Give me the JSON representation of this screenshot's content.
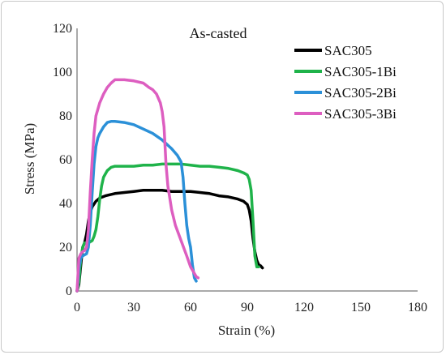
{
  "chart_data": {
    "type": "line",
    "title": "As-casted",
    "xlabel": "Strain (%)",
    "ylabel": "Stress (MPa)",
    "xlim": [
      0,
      180
    ],
    "ylim": [
      0,
      120
    ],
    "xticks": [
      0,
      30,
      60,
      90,
      120,
      150,
      180
    ],
    "yticks": [
      0,
      20,
      40,
      60,
      80,
      100,
      120
    ],
    "grid": false,
    "legend": "top-right",
    "series": [
      {
        "name": "SAC305",
        "color": "#000000",
        "points": [
          [
            0,
            0
          ],
          [
            1,
            3
          ],
          [
            2,
            12
          ],
          [
            3,
            20
          ],
          [
            4,
            22
          ],
          [
            5,
            26
          ],
          [
            6,
            32
          ],
          [
            7,
            36
          ],
          [
            8,
            38.5
          ],
          [
            10,
            41
          ],
          [
            12,
            42.5
          ],
          [
            15,
            43.5
          ],
          [
            20,
            44.5
          ],
          [
            25,
            45
          ],
          [
            30,
            45.5
          ],
          [
            35,
            46
          ],
          [
            40,
            46
          ],
          [
            45,
            46
          ],
          [
            50,
            45.5
          ],
          [
            55,
            45.5
          ],
          [
            60,
            45.5
          ],
          [
            65,
            45
          ],
          [
            70,
            44.5
          ],
          [
            75,
            43.5
          ],
          [
            80,
            43
          ],
          [
            85,
            42
          ],
          [
            88,
            41
          ],
          [
            90,
            39.5
          ],
          [
            91,
            37
          ],
          [
            92,
            32
          ],
          [
            93,
            24
          ],
          [
            94,
            18
          ],
          [
            95,
            14
          ],
          [
            96,
            12
          ],
          [
            97,
            11.5
          ],
          [
            98,
            10.5
          ]
        ]
      },
      {
        "name": "SAC305-1Bi",
        "color": "#1fb34a",
        "points": [
          [
            0,
            0
          ],
          [
            1,
            4
          ],
          [
            2,
            15
          ],
          [
            3,
            20
          ],
          [
            4,
            22
          ],
          [
            5,
            22
          ],
          [
            6,
            22
          ],
          [
            7,
            22.5
          ],
          [
            8,
            23
          ],
          [
            9,
            25
          ],
          [
            10,
            28
          ],
          [
            11,
            34
          ],
          [
            12,
            42
          ],
          [
            13,
            48
          ],
          [
            14,
            52
          ],
          [
            16,
            55
          ],
          [
            18,
            56.5
          ],
          [
            20,
            57
          ],
          [
            25,
            57
          ],
          [
            30,
            57
          ],
          [
            35,
            57.5
          ],
          [
            40,
            57.5
          ],
          [
            45,
            58
          ],
          [
            50,
            58
          ],
          [
            55,
            58
          ],
          [
            60,
            57.5
          ],
          [
            65,
            57
          ],
          [
            70,
            57
          ],
          [
            75,
            56.5
          ],
          [
            80,
            56
          ],
          [
            85,
            55
          ],
          [
            88,
            54
          ],
          [
            90,
            53
          ],
          [
            91,
            51
          ],
          [
            92,
            46
          ],
          [
            93,
            32
          ],
          [
            94,
            16
          ],
          [
            95,
            11
          ],
          [
            96,
            11
          ]
        ]
      },
      {
        "name": "SAC305-2Bi",
        "color": "#2b90d8",
        "points": [
          [
            0,
            0
          ],
          [
            1,
            10
          ],
          [
            2,
            15
          ],
          [
            3,
            16
          ],
          [
            4,
            16.5
          ],
          [
            5,
            17
          ],
          [
            6,
            20
          ],
          [
            7,
            30
          ],
          [
            8,
            45
          ],
          [
            9,
            58
          ],
          [
            10,
            66
          ],
          [
            11,
            70
          ],
          [
            12,
            72
          ],
          [
            14,
            75
          ],
          [
            16,
            77
          ],
          [
            18,
            77.5
          ],
          [
            20,
            77.5
          ],
          [
            25,
            77
          ],
          [
            30,
            76
          ],
          [
            35,
            74
          ],
          [
            40,
            72
          ],
          [
            45,
            69
          ],
          [
            50,
            65
          ],
          [
            53,
            62
          ],
          [
            55,
            59
          ],
          [
            56,
            52
          ],
          [
            57,
            40
          ],
          [
            58,
            30
          ],
          [
            59,
            24
          ],
          [
            60,
            20
          ],
          [
            61,
            12
          ],
          [
            62,
            6
          ],
          [
            63,
            4.5
          ]
        ]
      },
      {
        "name": "SAC305-3Bi",
        "color": "#dd5ec0",
        "points": [
          [
            0,
            0
          ],
          [
            1,
            15
          ],
          [
            2,
            17
          ],
          [
            3,
            18
          ],
          [
            4,
            18.5
          ],
          [
            5,
            20
          ],
          [
            6,
            28
          ],
          [
            7,
            45
          ],
          [
            8,
            60
          ],
          [
            9,
            72
          ],
          [
            10,
            80
          ],
          [
            12,
            86
          ],
          [
            14,
            90
          ],
          [
            16,
            93
          ],
          [
            18,
            95
          ],
          [
            20,
            96.5
          ],
          [
            25,
            96.5
          ],
          [
            30,
            96
          ],
          [
            35,
            95
          ],
          [
            38,
            93
          ],
          [
            40,
            92
          ],
          [
            42,
            90
          ],
          [
            44,
            86
          ],
          [
            45,
            82
          ],
          [
            46,
            75
          ],
          [
            47,
            58
          ],
          [
            48,
            48
          ],
          [
            50,
            37
          ],
          [
            52,
            30
          ],
          [
            55,
            23
          ],
          [
            58,
            16
          ],
          [
            60,
            11
          ],
          [
            62,
            8
          ],
          [
            63,
            6.5
          ],
          [
            64,
            6
          ]
        ]
      }
    ]
  }
}
